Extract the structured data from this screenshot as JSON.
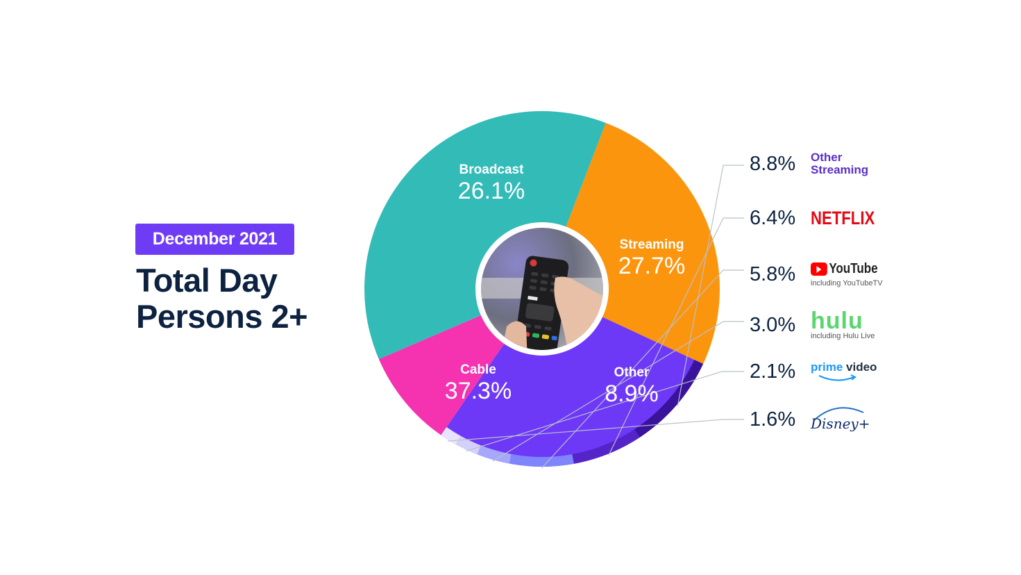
{
  "header": {
    "badge": "December 2021",
    "title_line1": "Total Day",
    "title_line2": "Persons 2+"
  },
  "colors": {
    "badge": "#6f3cf6",
    "title": "#0d2240",
    "broadcast": "#fb950d",
    "streaming": "#6e38f7",
    "other": "#f532b0",
    "cable": "#33bbb8",
    "other_streaming": "#3a139b",
    "netflix": "#5424c9",
    "youtube": "#7f85fb",
    "hulu": "#a6a9fb",
    "prime_video": "#d3d0fb",
    "disney_plus": "#e8e4fd"
  },
  "chart_data": {
    "type": "pie",
    "subtype": "donut-with-sub-breakdown",
    "title": "Total Day Persons 2+",
    "subtitle": "December 2021",
    "categories": [
      "Broadcast",
      "Streaming",
      "Other",
      "Cable"
    ],
    "values": [
      26.1,
      27.7,
      8.9,
      37.3
    ],
    "unit": "%",
    "breakdown": {
      "parent": "Streaming",
      "categories": [
        "Other Streaming",
        "Netflix",
        "YouTube (including YouTubeTV)",
        "Hulu (including Hulu Live)",
        "Prime Video",
        "Disney+"
      ],
      "values": [
        8.8,
        6.4,
        5.8,
        3.0,
        2.1,
        1.6
      ]
    },
    "legend_position": "right",
    "center_image": "tv-remote-photo"
  },
  "slices": [
    {
      "name": "Broadcast",
      "value": "26.1%"
    },
    {
      "name": "Streaming",
      "value": "27.7%"
    },
    {
      "name": "Other",
      "value": "8.9%"
    },
    {
      "name": "Cable",
      "value": "37.3%"
    }
  ],
  "legend": [
    {
      "pct": "8.8%",
      "brand": "Other Streaming",
      "line1": "Other",
      "line2": "Streaming"
    },
    {
      "pct": "6.4%",
      "brand": "NETFLIX"
    },
    {
      "pct": "5.8%",
      "brand": "YouTube",
      "sub": "including YouTubeTV"
    },
    {
      "pct": "3.0%",
      "brand": "hulu",
      "sub": "including Hulu Live"
    },
    {
      "pct": "2.1%",
      "brand_a": "prime",
      "brand_b": "video"
    },
    {
      "pct": "1.6%",
      "brand": "Disney+"
    }
  ]
}
